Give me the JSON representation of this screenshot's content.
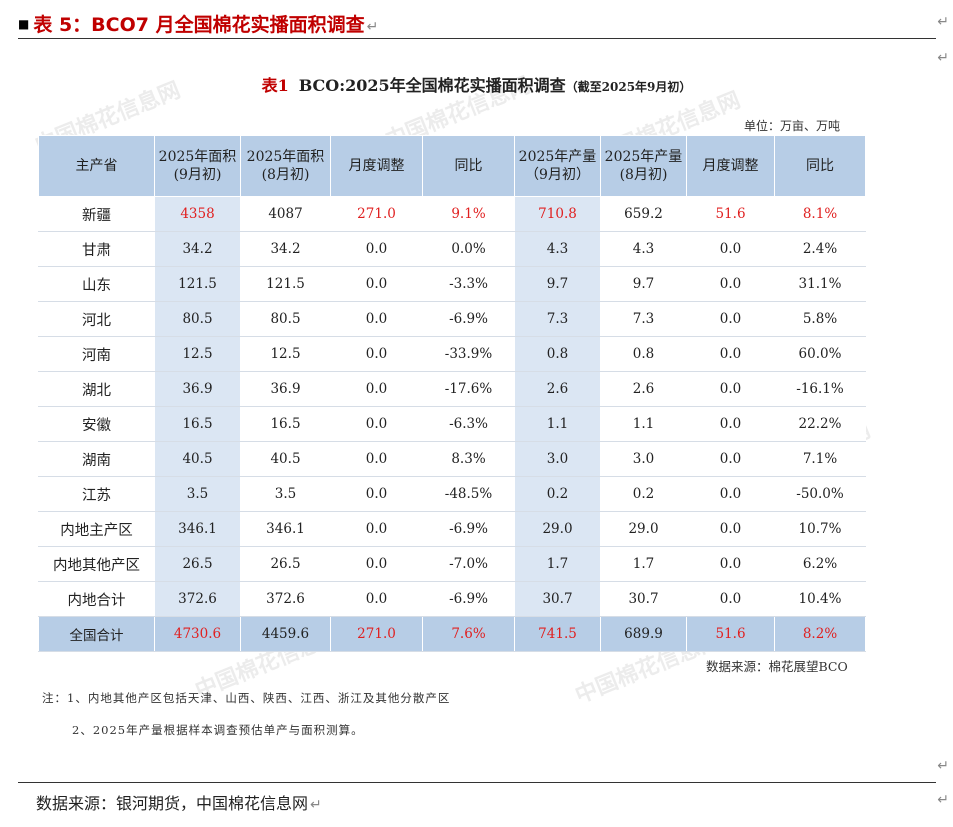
{
  "header": {
    "title": "表 5：BCO7 月全国棉花实播面积调查",
    "return_mark": "↵"
  },
  "table_title": {
    "label": "表1",
    "main": "BCO:2025年全国棉花实播面积调查",
    "note": "（截至2025年9月初）"
  },
  "unit": "单位：万亩、万吨",
  "columns": [
    "主产省",
    "2025年面积(9月初)",
    "2025年面积(8月初)",
    "月度调整",
    "同比",
    "2025年产量（9月初）",
    "2025年产量(8月初)",
    "月度调整",
    "同比"
  ],
  "rows": [
    {
      "name": "新疆",
      "area_sep": "4358",
      "area_aug": "4087",
      "area_adj": "271.0",
      "area_yoy": "9.1%",
      "prod_sep": "710.8",
      "prod_aug": "659.2",
      "prod_adj": "51.6",
      "prod_yoy": "8.1%",
      "highlight": true
    },
    {
      "name": "甘肃",
      "area_sep": "34.2",
      "area_aug": "34.2",
      "area_adj": "0.0",
      "area_yoy": "0.0%",
      "prod_sep": "4.3",
      "prod_aug": "4.3",
      "prod_adj": "0.0",
      "prod_yoy": "2.4%",
      "highlight": false
    },
    {
      "name": "山东",
      "area_sep": "121.5",
      "area_aug": "121.5",
      "area_adj": "0.0",
      "area_yoy": "-3.3%",
      "prod_sep": "9.7",
      "prod_aug": "9.7",
      "prod_adj": "0.0",
      "prod_yoy": "31.1%",
      "highlight": false
    },
    {
      "name": "河北",
      "area_sep": "80.5",
      "area_aug": "80.5",
      "area_adj": "0.0",
      "area_yoy": "-6.9%",
      "prod_sep": "7.3",
      "prod_aug": "7.3",
      "prod_adj": "0.0",
      "prod_yoy": "5.8%",
      "highlight": false
    },
    {
      "name": "河南",
      "area_sep": "12.5",
      "area_aug": "12.5",
      "area_adj": "0.0",
      "area_yoy": "-33.9%",
      "prod_sep": "0.8",
      "prod_aug": "0.8",
      "prod_adj": "0.0",
      "prod_yoy": "60.0%",
      "highlight": false
    },
    {
      "name": "湖北",
      "area_sep": "36.9",
      "area_aug": "36.9",
      "area_adj": "0.0",
      "area_yoy": "-17.6%",
      "prod_sep": "2.6",
      "prod_aug": "2.6",
      "prod_adj": "0.0",
      "prod_yoy": "-16.1%",
      "highlight": false
    },
    {
      "name": "安徽",
      "area_sep": "16.5",
      "area_aug": "16.5",
      "area_adj": "0.0",
      "area_yoy": "-6.3%",
      "prod_sep": "1.1",
      "prod_aug": "1.1",
      "prod_adj": "0.0",
      "prod_yoy": "22.2%",
      "highlight": false
    },
    {
      "name": "湖南",
      "area_sep": "40.5",
      "area_aug": "40.5",
      "area_adj": "0.0",
      "area_yoy": "8.3%",
      "prod_sep": "3.0",
      "prod_aug": "3.0",
      "prod_adj": "0.0",
      "prod_yoy": "7.1%",
      "highlight": false
    },
    {
      "name": "江苏",
      "area_sep": "3.5",
      "area_aug": "3.5",
      "area_adj": "0.0",
      "area_yoy": "-48.5%",
      "prod_sep": "0.2",
      "prod_aug": "0.2",
      "prod_adj": "0.0",
      "prod_yoy": "-50.0%",
      "highlight": false
    },
    {
      "name": "内地主产区",
      "area_sep": "346.1",
      "area_aug": "346.1",
      "area_adj": "0.0",
      "area_yoy": "-6.9%",
      "prod_sep": "29.0",
      "prod_aug": "29.0",
      "prod_adj": "0.0",
      "prod_yoy": "10.7%",
      "highlight": false
    },
    {
      "name": "内地其他产区",
      "area_sep": "26.5",
      "area_aug": "26.5",
      "area_adj": "0.0",
      "area_yoy": "-7.0%",
      "prod_sep": "1.7",
      "prod_aug": "1.7",
      "prod_adj": "0.0",
      "prod_yoy": "6.2%",
      "highlight": false
    },
    {
      "name": "内地合计",
      "area_sep": "372.6",
      "area_aug": "372.6",
      "area_adj": "0.0",
      "area_yoy": "-6.9%",
      "prod_sep": "30.7",
      "prod_aug": "30.7",
      "prod_adj": "0.0",
      "prod_yoy": "10.4%",
      "highlight": false
    }
  ],
  "total": {
    "name": "全国合计",
    "area_sep": "4730.6",
    "area_aug": "4459.6",
    "area_adj": "271.0",
    "area_yoy": "7.6%",
    "prod_sep": "741.5",
    "prod_aug": "689.9",
    "prod_adj": "51.6",
    "prod_yoy": "8.2%"
  },
  "source_inner": "数据来源：棉花展望BCO",
  "notes": [
    "注：1、内地其他产区包括天津、山西、陕西、江西、浙江及其他分散产区",
    "2、2025年产量根据样本调查预估单产与面积测算。"
  ],
  "footer": "数据来源：银河期货，中国棉花信息网",
  "colors": {
    "accent_red": "#c00000",
    "value_red": "#e02020",
    "header_blue": "#b7cde6",
    "shade_blue": "#dbe6f3"
  },
  "watermark": "中国棉花信息网"
}
